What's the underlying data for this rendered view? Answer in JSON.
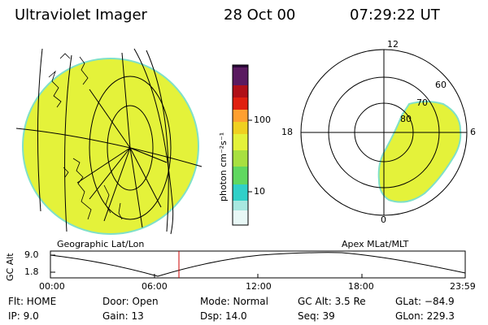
{
  "header": {
    "title": "Ultraviolet Imager",
    "date": "28 Oct 00",
    "time": "07:29:22 UT"
  },
  "colorbar": {
    "unit_label": "photon cm⁻²s⁻¹",
    "ticks": [
      "100",
      "10"
    ]
  },
  "polar_plot": {
    "mlt_labels": [
      "12",
      "18",
      "6",
      "0"
    ],
    "lat_labels": [
      "60",
      "70",
      "80"
    ]
  },
  "panel_labels": {
    "left": "Geographic Lat/Lon",
    "right": "Apex MLat/MLT"
  },
  "altitude_plot": {
    "ylabel": "GC Alt",
    "yticks": [
      "9.0",
      "1.8"
    ],
    "xticks": [
      "00:00",
      "06:00",
      "12:00",
      "18:00",
      "23:59"
    ],
    "current_time_marker": "07:29:22"
  },
  "status": {
    "flt": "Flt: HOME",
    "ip": "IP:  9.0",
    "door": "Door: Open",
    "gain": "Gain: 13",
    "mode": "Mode: Normal",
    "dsp": "Dsp:   14.0",
    "gc_alt": "GC Alt: 3.5 Re",
    "seq": "Seq: 39",
    "glat": "GLat: −84.9",
    "glon": "GLon: 229.3"
  },
  "colors": {
    "fill": "#e4f23a",
    "edge": "#7fe0c8",
    "marker": "#cc0000"
  }
}
